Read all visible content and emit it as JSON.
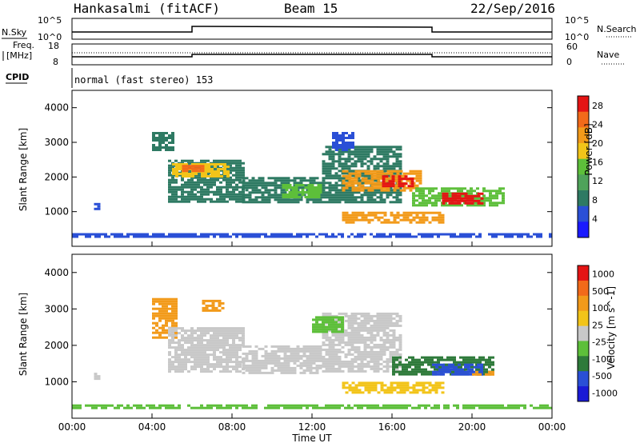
{
  "header": {
    "station": "Hankasalmi (fitACF)",
    "beam": "Beam 15",
    "date": "22/Sep/2016"
  },
  "top_panels": {
    "nsky_label": "N.Sky",
    "nsky_ticks": [
      "10^5",
      "10^0"
    ],
    "nsearch_label": "N.Search",
    "nsearch_ticks": [
      "10^5",
      "10^0"
    ],
    "freq_label_1": "Freq.",
    "freq_label_2": "[MHz]",
    "freq_ticks": [
      "18",
      "8"
    ],
    "nave_label": "Nave",
    "nave_ticks": [
      "60",
      "0"
    ],
    "cpid_label": "CPID",
    "cpid_text": "normal (fast stereo) 153"
  },
  "colors": {
    "power_scale": [
      "#1a1aff",
      "#2a4fd6",
      "#2e7a63",
      "#4fa35a",
      "#5dbf3a",
      "#f2c419",
      "#f29a1a",
      "#f26a1a",
      "#e41414"
    ],
    "velocity_scale": [
      "#1a1ad6",
      "#2a4fd6",
      "#2e7a3a",
      "#5dbf3a",
      "#c8c8c8",
      "#f2c419",
      "#f29a1a",
      "#f26a1a",
      "#e41414"
    ]
  },
  "chart_data": [
    {
      "type": "heatmap",
      "title": "",
      "xlabel": "",
      "ylabel": "Slant Range [km]",
      "x_ticks": [
        "00:00",
        "04:00",
        "08:00",
        "12:00",
        "16:00",
        "20:00",
        "00:00"
      ],
      "y_ticks": [
        "1000",
        "2000",
        "3000",
        "4000"
      ],
      "ylim": [
        0,
        4500
      ],
      "xlim_hours": [
        0,
        24
      ],
      "colorbar_label": "Power [dB]",
      "colorbar_ticks": [
        "4",
        "8",
        "12",
        "16",
        "20",
        "24",
        "28"
      ],
      "colorbar_range": [
        0,
        30
      ],
      "regions": [
        {
          "t0": 0.0,
          "t1": 24.0,
          "r0": 250,
          "r1": 380,
          "v": 6
        },
        {
          "t0": 1.1,
          "t1": 1.4,
          "r0": 1100,
          "r1": 1250,
          "v": 6
        },
        {
          "t0": 4.8,
          "t1": 8.5,
          "r0": 1300,
          "r1": 2500,
          "v": 8
        },
        {
          "t0": 5.0,
          "t1": 7.8,
          "r0": 2000,
          "r1": 2400,
          "v": 18
        },
        {
          "t0": 5.5,
          "t1": 6.5,
          "r0": 2150,
          "r1": 2350,
          "v": 24
        },
        {
          "t0": 8.5,
          "t1": 12.5,
          "r0": 1250,
          "r1": 2000,
          "v": 8
        },
        {
          "t0": 10.5,
          "t1": 12.5,
          "r0": 1450,
          "r1": 1800,
          "v": 14
        },
        {
          "t0": 12.5,
          "t1": 16.5,
          "r0": 1300,
          "r1": 2900,
          "v": 8
        },
        {
          "t0": 13.5,
          "t1": 17.5,
          "r0": 1600,
          "r1": 2200,
          "v": 22
        },
        {
          "t0": 15.5,
          "t1": 17.0,
          "r0": 1750,
          "r1": 2050,
          "v": 27
        },
        {
          "t0": 17.0,
          "t1": 21.5,
          "r0": 1200,
          "r1": 1700,
          "v": 16
        },
        {
          "t0": 18.5,
          "t1": 20.5,
          "r0": 1250,
          "r1": 1550,
          "v": 27
        },
        {
          "t0": 13.5,
          "t1": 18.5,
          "r0": 700,
          "r1": 1000,
          "v": 20
        },
        {
          "t0": 4.0,
          "t1": 5.0,
          "r0": 2800,
          "r1": 3300,
          "v": 8
        },
        {
          "t0": 13.0,
          "t1": 14.0,
          "r0": 2800,
          "r1": 3300,
          "v": 6
        }
      ]
    },
    {
      "type": "heatmap",
      "title": "",
      "xlabel": "Time UT",
      "ylabel": "Slant Range [km]",
      "x_ticks": [
        "00:00",
        "04:00",
        "08:00",
        "12:00",
        "16:00",
        "20:00",
        "00:00"
      ],
      "y_ticks": [
        "1000",
        "2000",
        "3000",
        "4000"
      ],
      "ylim": [
        0,
        4500
      ],
      "xlim_hours": [
        0,
        24
      ],
      "colorbar_label": "Velocity [m s^-1]",
      "colorbar_ticks": [
        "1000",
        "500",
        "100",
        "25",
        "-25",
        "-100",
        "-500",
        "-1000"
      ],
      "regions": [
        {
          "t0": 0.0,
          "t1": 24.0,
          "r0": 250,
          "r1": 380,
          "v": 3
        },
        {
          "t0": 1.1,
          "t1": 1.4,
          "r0": 1100,
          "r1": 1250,
          "v": 4
        },
        {
          "t0": 4.0,
          "t1": 5.2,
          "r0": 2200,
          "r1": 3300,
          "v": 6
        },
        {
          "t0": 4.8,
          "t1": 8.5,
          "r0": 1300,
          "r1": 2500,
          "v": 4
        },
        {
          "t0": 8.5,
          "t1": 12.5,
          "r0": 1250,
          "r1": 2000,
          "v": 4
        },
        {
          "t0": 12.5,
          "t1": 16.5,
          "r0": 1300,
          "r1": 2900,
          "v": 4
        },
        {
          "t0": 16.0,
          "t1": 21.0,
          "r0": 1200,
          "r1": 1700,
          "v": 2
        },
        {
          "t0": 18.0,
          "t1": 20.5,
          "r0": 1200,
          "r1": 1500,
          "v": 1
        },
        {
          "t0": 20.0,
          "t1": 21.0,
          "r0": 1200,
          "r1": 1300,
          "v": 6
        },
        {
          "t0": 13.5,
          "t1": 18.5,
          "r0": 700,
          "r1": 1000,
          "v": 5
        },
        {
          "t0": 6.5,
          "t1": 7.5,
          "r0": 2950,
          "r1": 3250,
          "v": 6
        },
        {
          "t0": 12.0,
          "t1": 13.5,
          "r0": 2400,
          "r1": 2800,
          "v": 3
        }
      ]
    }
  ]
}
